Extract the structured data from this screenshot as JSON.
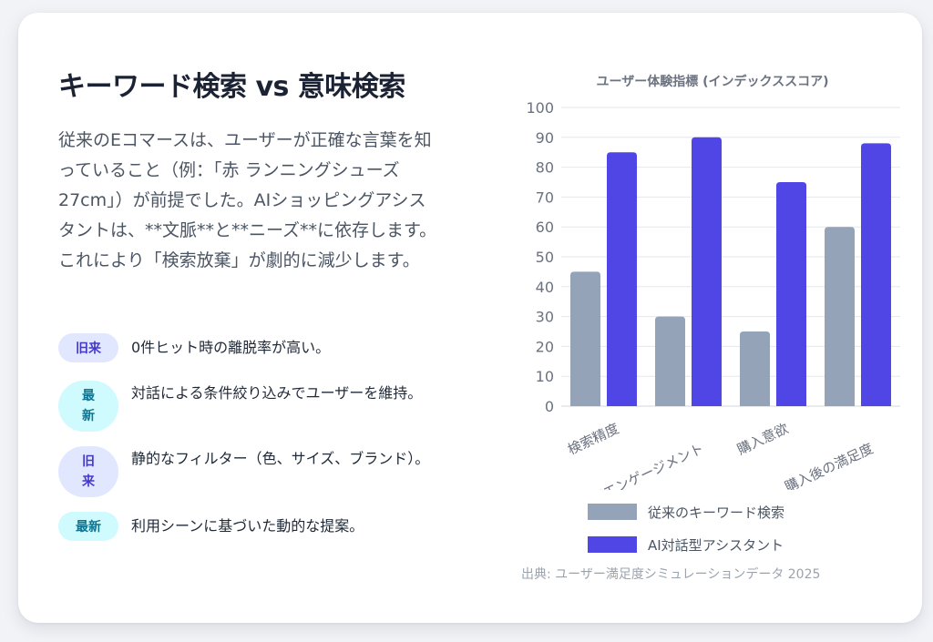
{
  "heading": "キーワード検索 vs 意味検索",
  "description": "従来のEコマースは、ユーザーが正確な言葉を知っていること（例：「赤 ランニングシューズ 27cm」）が前提でした。AIショッピングアシスタントは、**文脈**と**ニーズ**に依存します。これにより「検索放棄」が劇的に減少します。",
  "comparisons": [
    {
      "badge": "旧来",
      "kind": "old",
      "text": "0件ヒット時の離脱率が高い。"
    },
    {
      "badge": "最新",
      "kind": "new",
      "text": "対話による条件絞り込みでユーザーを維持。"
    },
    {
      "badge": "旧来",
      "kind": "old",
      "text": "静的なフィルター（色、サイズ、ブランド）。"
    },
    {
      "badge": "最新",
      "kind": "new",
      "text": "利用シーンに基づいた動的な提案。"
    }
  ],
  "chart_data": {
    "type": "bar",
    "title": "ユーザー体験指標 (インデックススコア)",
    "categories": [
      "検索精度",
      "滞在エンゲージメント",
      "購入意欲",
      "購入後の満足度"
    ],
    "series": [
      {
        "name": "従来のキーワード検索",
        "values": [
          45,
          30,
          25,
          60
        ],
        "color": "#94a3b8"
      },
      {
        "name": "AI対話型アシスタント",
        "values": [
          85,
          90,
          75,
          88
        ],
        "color": "#4f46e5"
      }
    ],
    "ylim": [
      0,
      100
    ],
    "yticks": [
      0,
      10,
      20,
      30,
      40,
      50,
      60,
      70,
      80,
      90,
      100
    ],
    "grid": true,
    "legend": "bottom",
    "source": "出典: ユーザー満足度シミュレーションデータ 2025"
  }
}
